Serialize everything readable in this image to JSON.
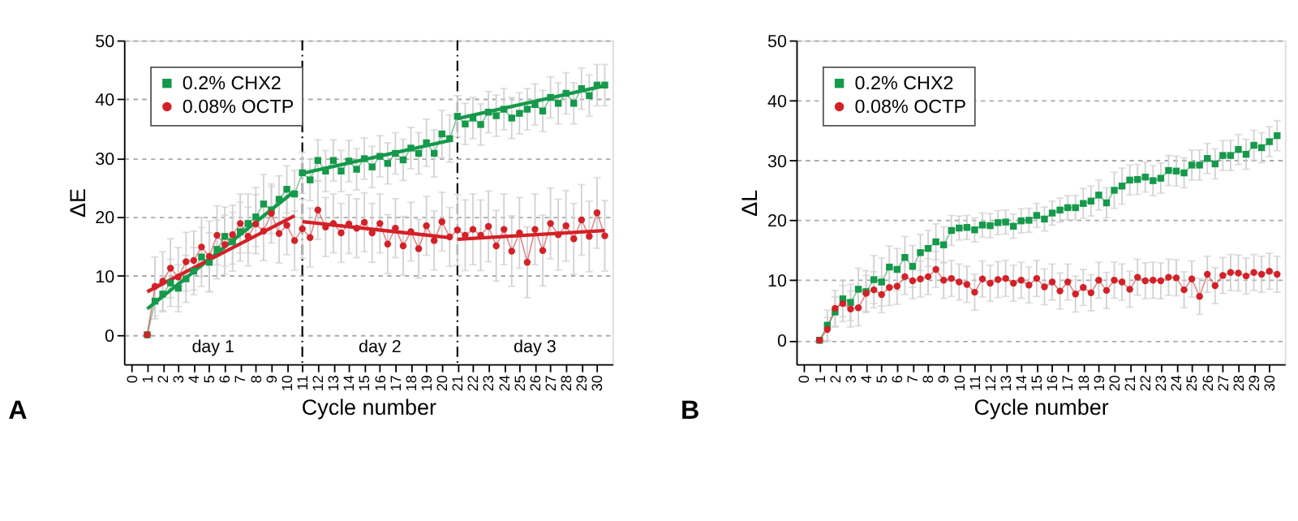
{
  "chart_data": [
    {
      "type": "line",
      "title": "A",
      "xlabel": "Cycle number",
      "ylabel": "ΔE",
      "xlim": [
        -0.5,
        31
      ],
      "ylim": [
        -5,
        50
      ],
      "xticks": [
        0,
        1,
        2,
        3,
        4,
        5,
        6,
        7,
        8,
        9,
        10,
        11,
        12,
        13,
        14,
        15,
        16,
        17,
        18,
        19,
        20,
        21,
        22,
        23,
        24,
        25,
        26,
        27,
        28,
        29,
        30
      ],
      "yticks": [
        0,
        10,
        20,
        30,
        40,
        50
      ],
      "grid": "y",
      "legend": "top left",
      "x": [
        1,
        1.5,
        2,
        2.5,
        3,
        3.5,
        4,
        4.5,
        5,
        5.5,
        6,
        6.5,
        7,
        7.5,
        8,
        8.5,
        9,
        9.5,
        10,
        10.5,
        11,
        11.5,
        12,
        12.5,
        13,
        13.5,
        14,
        14.5,
        15,
        15.5,
        16,
        16.5,
        17,
        17.5,
        18,
        18.5,
        19,
        19.5,
        20,
        20.5,
        21,
        21.5,
        22,
        22.5,
        23,
        23.5,
        24,
        24.5,
        25,
        25.5,
        26,
        26.5,
        27,
        27.5,
        28,
        28.5,
        29,
        29.5,
        30,
        30.5
      ],
      "series": [
        {
          "name": "0.2% CHX2",
          "color": "#15994a",
          "marker": "square",
          "values": [
            0,
            5.7,
            6.9,
            8.8,
            7.9,
            9.5,
            10.8,
            13.2,
            12.3,
            14.5,
            16.7,
            15.8,
            17.5,
            18.9,
            20.0,
            22.2,
            21.2,
            23.0,
            24.7,
            23.9,
            27.5,
            26.3,
            29.6,
            27.8,
            29.6,
            27.8,
            29.5,
            28.1,
            29.9,
            28.5,
            30.3,
            29.1,
            30.8,
            29.7,
            31.7,
            30.8,
            32.6,
            30.8,
            34.1,
            33.3,
            37.1,
            35.8,
            36.8,
            35.7,
            37.8,
            37.2,
            38.3,
            36.8,
            37.6,
            38.3,
            39.1,
            38.0,
            40.3,
            39.3,
            41.0,
            39.3,
            41.8,
            40.6,
            42.4,
            42.4
          ],
          "errors": [
            0,
            3,
            3,
            4,
            4,
            4,
            4,
            5,
            5,
            5,
            5,
            5,
            5,
            5,
            5,
            5,
            4,
            4,
            4,
            4,
            3.5,
            3.5,
            3.5,
            3.5,
            3.5,
            3.5,
            3.5,
            3.5,
            3.5,
            3.5,
            3.5,
            3.5,
            3.5,
            3.5,
            3.5,
            3.5,
            4,
            4,
            4,
            4,
            3.5,
            3.5,
            3.5,
            3.5,
            3.5,
            3.5,
            3.5,
            3.5,
            3.5,
            3.5,
            3.5,
            3.5,
            3.5,
            3.5,
            3.5,
            3.5,
            3.5,
            3.5,
            3.5,
            3.5
          ]
        },
        {
          "name": "0.08% OCTP",
          "color": "#d42027",
          "marker": "circle",
          "values": [
            0,
            8.2,
            9.1,
            11.3,
            9.8,
            12.4,
            12.6,
            14.9,
            13.3,
            16.9,
            15.3,
            17.0,
            18.9,
            16.7,
            18.8,
            17.6,
            20.6,
            17.2,
            18.6,
            16.0,
            18.0,
            16.5,
            21.2,
            18.3,
            18.9,
            17.3,
            18.8,
            18.1,
            19.1,
            17.3,
            18.9,
            15.4,
            18.1,
            15.1,
            17.5,
            14.6,
            18.5,
            16.0,
            19.2,
            16.6,
            17.8,
            16.9,
            17.9,
            16.9,
            18.4,
            15.1,
            17.9,
            14.2,
            17.3,
            12.3,
            17.9,
            14.3,
            18.9,
            17.0,
            18.5,
            16.3,
            19.5,
            16.7,
            20.7,
            16.8
          ],
          "errors": [
            0,
            5,
            5,
            5,
            5,
            5,
            5,
            5,
            6,
            5,
            5,
            5,
            5,
            5,
            5,
            5,
            5,
            5,
            5,
            5,
            5,
            5,
            5,
            5,
            5,
            5,
            5,
            5,
            5,
            5,
            5,
            5,
            5,
            5,
            5,
            5,
            5,
            5,
            5,
            5,
            6,
            6,
            6,
            6,
            6,
            6,
            6,
            6,
            6,
            6,
            6,
            6,
            6,
            6,
            6,
            6,
            6,
            6,
            6,
            6
          ]
        },
        {
          "type": "line",
          "color": "#15994a",
          "marker": "none",
          "x": [
            1,
            10.5
          ],
          "values": [
            4.4,
            24.4
          ]
        },
        {
          "type": "line",
          "color": "#d42027",
          "marker": "none",
          "x": [
            1,
            10.5
          ],
          "values": [
            7.3,
            20.2
          ]
        },
        {
          "type": "line",
          "color": "#15994a",
          "marker": "none",
          "x": [
            11,
            20.5
          ],
          "values": [
            27.4,
            33.0
          ]
        },
        {
          "type": "line",
          "color": "#d42027",
          "marker": "none",
          "x": [
            11,
            20.5
          ],
          "values": [
            19.2,
            16.5
          ]
        },
        {
          "type": "line",
          "color": "#15994a",
          "marker": "none",
          "x": [
            21,
            30.5
          ],
          "values": [
            36.7,
            42.3
          ]
        },
        {
          "type": "line",
          "color": "#d42027",
          "marker": "none",
          "x": [
            21,
            30.5
          ],
          "values": [
            16.2,
            17.7
          ]
        }
      ],
      "ref_lines": [
        {
          "axis": "x",
          "value": 11,
          "color": "#000000",
          "line_style": "dashed"
        },
        {
          "axis": "x",
          "value": 21,
          "color": "#000000",
          "line_style": "dashed"
        }
      ],
      "annotations": [
        "day 1",
        "day 2",
        "day 3"
      ]
    },
    {
      "type": "line",
      "title": "B",
      "xlabel": "Cycle number",
      "ylabel": "ΔL",
      "xlim": [
        -0.5,
        31
      ],
      "ylim": [
        -4,
        50
      ],
      "xticks": [
        0,
        1,
        2,
        3,
        4,
        5,
        6,
        7,
        8,
        9,
        10,
        11,
        12,
        13,
        14,
        15,
        16,
        17,
        18,
        19,
        20,
        21,
        22,
        23,
        24,
        25,
        26,
        27,
        28,
        29,
        30
      ],
      "yticks": [
        0,
        10,
        20,
        30,
        40,
        50
      ],
      "grid": "y",
      "legend": "top left",
      "x": [
        1,
        1.5,
        2,
        2.5,
        3,
        3.5,
        4,
        4.5,
        5,
        5.5,
        6,
        6.5,
        7,
        7.5,
        8,
        8.5,
        9,
        9.5,
        10,
        10.5,
        11,
        11.5,
        12,
        12.5,
        13,
        13.5,
        14,
        14.5,
        15,
        15.5,
        16,
        16.5,
        17,
        17.5,
        18,
        18.5,
        19,
        19.5,
        20,
        20.5,
        21,
        21.5,
        22,
        22.5,
        23,
        23.5,
        24,
        24.5,
        25,
        25.5,
        26,
        26.5,
        27,
        27.5,
        28,
        28.5,
        29,
        29.5,
        30,
        30.5
      ],
      "series": [
        {
          "name": "0.2% CHX2",
          "color": "#15994a",
          "marker": "square",
          "values": [
            0,
            2.5,
            4.7,
            6.9,
            6.3,
            8.5,
            8.1,
            10.1,
            9.7,
            12.2,
            11.8,
            13.8,
            12.3,
            14.6,
            15.3,
            16.4,
            15.9,
            18.3,
            18.7,
            18.8,
            18.4,
            19.2,
            19.1,
            19.6,
            19.7,
            19.0,
            19.9,
            20.0,
            20.8,
            20.2,
            21.2,
            21.7,
            22.1,
            22.1,
            22.8,
            23.2,
            24.2,
            22.9,
            25.0,
            25.7,
            26.7,
            26.8,
            27.2,
            26.6,
            27.0,
            28.3,
            28.2,
            27.9,
            29.2,
            29.2,
            30.3,
            29.4,
            30.8,
            30.8,
            31.8,
            31.0,
            32.5,
            32.1,
            33.1,
            34.1
          ],
          "errors": [
            0,
            2.5,
            2.5,
            3,
            3,
            3.5,
            3.5,
            4,
            4,
            3.5,
            3.5,
            3.5,
            3.5,
            3,
            3,
            3,
            3,
            2.5,
            2,
            2,
            2,
            2,
            2,
            2,
            2,
            2,
            2,
            2,
            2,
            2,
            2,
            2,
            2,
            2,
            2.5,
            2.5,
            2.5,
            2.5,
            3,
            3,
            2.5,
            2.5,
            2.5,
            2.5,
            2.5,
            2.5,
            2.5,
            2.5,
            2.5,
            2.5,
            2.5,
            2.5,
            2.5,
            2.5,
            2.5,
            2.5,
            2.5,
            2.5,
            2.5,
            2.5
          ]
        },
        {
          "name": "0.08% OCTP",
          "color": "#d42027",
          "marker": "circle",
          "values": [
            0,
            1.8,
            5.3,
            6.1,
            5.2,
            5.4,
            7.8,
            8.4,
            7.6,
            8.8,
            9.0,
            10.6,
            9.9,
            10.2,
            10.6,
            11.8,
            10.0,
            10.3,
            9.7,
            9.3,
            8.0,
            10.2,
            9.5,
            10.1,
            10.3,
            9.5,
            10.0,
            9.2,
            10.3,
            8.9,
            9.7,
            8.2,
            9.7,
            7.7,
            8.8,
            7.9,
            10.0,
            8.3,
            10.0,
            9.7,
            8.5,
            10.5,
            9.9,
            10.0,
            9.9,
            10.5,
            10.4,
            8.4,
            10.2,
            7.3,
            11.0,
            9.1,
            10.8,
            11.3,
            11.2,
            10.7,
            11.3,
            11.0,
            11.5,
            11.0
          ],
          "errors": [
            0,
            2,
            3,
            3,
            3,
            3,
            3,
            3,
            3,
            3,
            3,
            3,
            3,
            3,
            3,
            3,
            3,
            3,
            3,
            3,
            3,
            3,
            3,
            3,
            3,
            3,
            3,
            3,
            3,
            3,
            3,
            3,
            3,
            3,
            3,
            3,
            3,
            3,
            3,
            3,
            3,
            3,
            3,
            3,
            3,
            3,
            3,
            3,
            3,
            3,
            3,
            3,
            3,
            3,
            3,
            3,
            3,
            3,
            3,
            3
          ]
        }
      ]
    }
  ]
}
